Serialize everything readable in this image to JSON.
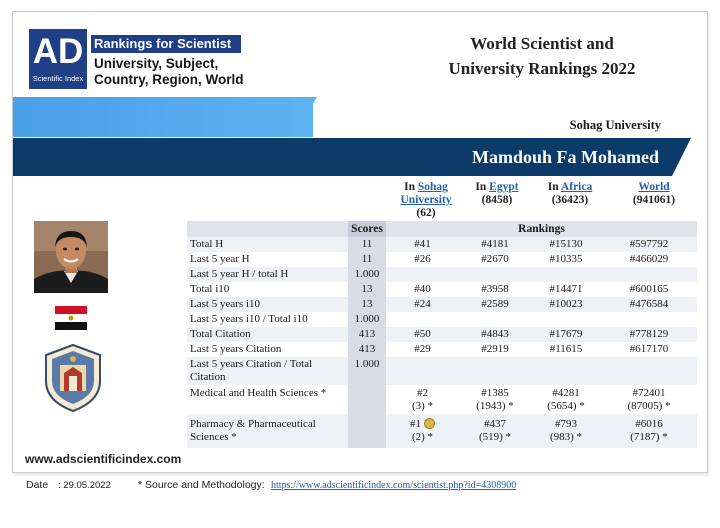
{
  "logo": {
    "mark": "AD",
    "sub": "Scientific Index"
  },
  "brand": {
    "banner": "Rankings for Scientist",
    "line1": "University, Subject,",
    "line2": "Country, Region, World"
  },
  "title": {
    "line1": "World Scientist and",
    "line2": "University Rankings 2022"
  },
  "university": "Sohag University",
  "scientist_name": "Mamdouh Fa Mohamed",
  "columns": {
    "university": {
      "prefix": "In",
      "link1": "Sohag",
      "link2": "University",
      "count": "(62)"
    },
    "country": {
      "prefix": "In",
      "link": "Egypt",
      "count": "(8458)"
    },
    "region": {
      "prefix": "In",
      "link": "Africa",
      "count": "(36423)"
    },
    "world": {
      "link": "World",
      "count": "(941061)"
    }
  },
  "table": {
    "scores_header": "Scores",
    "rankings_header": "Rankings",
    "rows": [
      {
        "label": "Total H",
        "score": "11",
        "u": "#41",
        "c": "#4181",
        "r": "#15130",
        "w": "#597792"
      },
      {
        "label": "Last 5 year H",
        "score": "11",
        "u": "#26",
        "c": "#2670",
        "r": "#10335",
        "w": "#466029"
      },
      {
        "label": "Last 5 year H / total H",
        "score": "1.000",
        "u": "",
        "c": "",
        "r": "",
        "w": ""
      },
      {
        "label": "Total i10",
        "score": "13",
        "u": "#40",
        "c": "#3958",
        "r": "#14471",
        "w": "#600165"
      },
      {
        "label": "Last 5 years i10",
        "score": "13",
        "u": "#24",
        "c": "#2589",
        "r": "#10023",
        "w": "#476584"
      },
      {
        "label": "Last 5 years i10 / Total i10",
        "score": "1.000",
        "u": "",
        "c": "",
        "r": "",
        "w": ""
      },
      {
        "label": "Total Citation",
        "score": "413",
        "u": "#50",
        "c": "#4843",
        "r": "#17679",
        "w": "#778129"
      },
      {
        "label": "Last 5 years Citation",
        "score": "413",
        "u": "#29",
        "c": "#2919",
        "r": "#11615",
        "w": "#617170"
      },
      {
        "label1": "Last 5 years Citation / Total",
        "label2": "Citation",
        "score": "1.000",
        "u": "",
        "c": "",
        "r": "",
        "w": ""
      }
    ],
    "subjects": [
      {
        "label1": "Medical and Health Sciences *",
        "label2": "",
        "u1": "#2",
        "u2": "(3) *",
        "c1": "#1385",
        "c2": "(1943) *",
        "r1": "#4281",
        "r2": "(5654) *",
        "w1": "#72401",
        "w2": "(87005) *"
      },
      {
        "label1": "Pharmacy & Pharmaceutical",
        "label2": "Sciences *",
        "u1": "#1",
        "u2": "(2) *",
        "c1": "#437",
        "c2": "(519) *",
        "r1": "#793",
        "r2": "(983) *",
        "w1": "#6016",
        "w2": "(7187) *"
      }
    ]
  },
  "website": "www.adscientificindex.com",
  "footer": {
    "date_label": "Date",
    "date_value": ":  29.05.2022",
    "source_label": "* Source and Methodology:",
    "source_link": "https://www.adscientificindex.com/scientist.php?id=4308900"
  },
  "colors": {
    "navy": "#0c3a69",
    "sky": "#4a9fe6",
    "logo_blue": "#1f3f86",
    "link": "#1f5fae"
  },
  "icons": [
    "profile-photo",
    "egypt-flag-icon",
    "university-seal-icon",
    "medal-icon"
  ]
}
